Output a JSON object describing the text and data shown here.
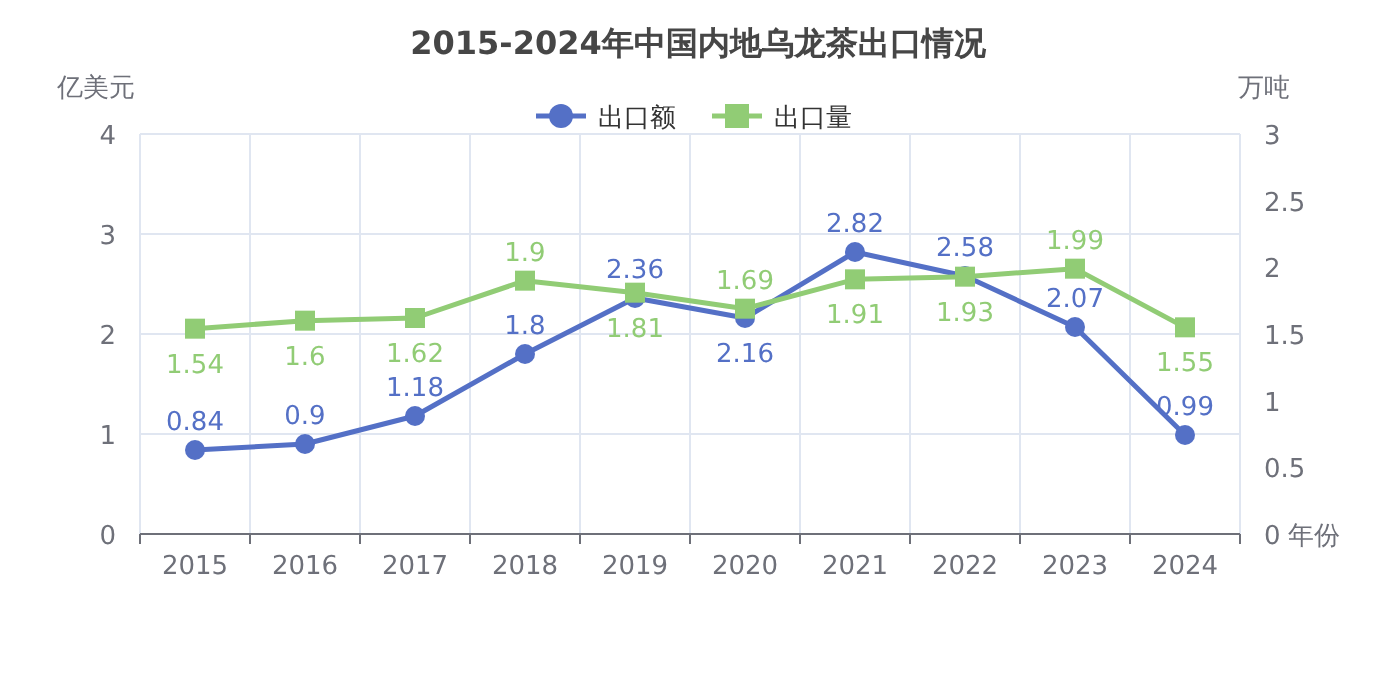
{
  "chart_data": {
    "type": "line",
    "title": "2015-2024年中国内地乌龙茶出口情况",
    "xlabel": "年份",
    "ylabel": "亿美元",
    "y2label": "万吨",
    "categories": [
      "2015",
      "2016",
      "2017",
      "2018",
      "2019",
      "2020",
      "2021",
      "2022",
      "2023",
      "2024"
    ],
    "series": [
      {
        "name": "出口额",
        "color": "#5470c6",
        "marker": "circle",
        "values": [
          0.84,
          0.9,
          1.18,
          1.8,
          2.36,
          2.16,
          2.82,
          2.58,
          2.07,
          0.99
        ]
      },
      {
        "name": "出口量",
        "color": "#91cc75",
        "marker": "square",
        "axis": "y2",
        "values": [
          1.54,
          1.6,
          1.62,
          1.9,
          1.81,
          1.69,
          1.91,
          1.93,
          1.99,
          1.55
        ]
      }
    ],
    "ylim": [
      0,
      4
    ],
    "yticks": [
      0,
      1,
      2,
      3,
      4
    ],
    "y2lim": [
      0,
      3
    ],
    "y2ticks": [
      0,
      0.5,
      1,
      1.5,
      2,
      2.5,
      3
    ],
    "grid": true,
    "legend": "top",
    "data_labels": true
  }
}
